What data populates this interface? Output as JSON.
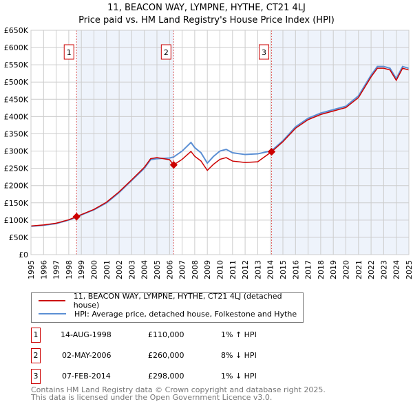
{
  "title": "11, BEACON WAY, LYMPNE, HYTHE, CT21 4LJ",
  "subtitle": "Price paid vs. HM Land Registry's House Price Index (HPI)",
  "chart_data": {
    "type": "line",
    "xlim": [
      1995,
      2025
    ],
    "ylim": [
      0,
      650000
    ],
    "y_ticks": [
      0,
      50000,
      100000,
      150000,
      200000,
      250000,
      300000,
      350000,
      400000,
      450000,
      500000,
      550000,
      600000,
      650000
    ],
    "y_tick_labels": [
      "£0",
      "£50K",
      "£100K",
      "£150K",
      "£200K",
      "£250K",
      "£300K",
      "£350K",
      "£400K",
      "£450K",
      "£500K",
      "£550K",
      "£600K",
      "£650K"
    ],
    "x_ticks": [
      1995,
      1996,
      1997,
      1998,
      1999,
      2000,
      2001,
      2002,
      2003,
      2004,
      2005,
      2006,
      2007,
      2008,
      2009,
      2010,
      2011,
      2012,
      2013,
      2014,
      2015,
      2016,
      2017,
      2018,
      2019,
      2020,
      2021,
      2022,
      2023,
      2024,
      2025
    ],
    "grid": true,
    "series": [
      {
        "name": "11, BEACON WAY, LYMPNE, HYTHE, CT21 4LJ (detached house)",
        "color": "#cc0000",
        "x": [
          1995,
          1996,
          1997,
          1998,
          1998.62,
          1999,
          2000,
          2001,
          2002,
          2003,
          2004,
          2004.5,
          2005,
          2006,
          2006.33,
          2007,
          2007.7,
          2008,
          2008.5,
          2009,
          2009.5,
          2010,
          2010.5,
          2011,
          2012,
          2013,
          2014.1,
          2015,
          2016,
          2017,
          2018,
          2019,
          2020,
          2021,
          2022,
          2022.5,
          2023,
          2023.5,
          2024,
          2024.5,
          2025
        ],
        "y": [
          83000,
          86000,
          91000,
          101000,
          110000,
          116000,
          131000,
          152000,
          182000,
          217000,
          253000,
          278000,
          281000,
          275000,
          260000,
          276000,
          299000,
          285000,
          271000,
          244000,
          262000,
          276000,
          281000,
          271000,
          267000,
          269000,
          298000,
          327000,
          366000,
          391000,
          406000,
          416000,
          426000,
          455000,
          515000,
          540000,
          540000,
          535000,
          505000,
          540000,
          535000
        ]
      },
      {
        "name": "HPI: Average price, detached house, Folkestone and Hythe",
        "color": "#5b8fd4",
        "x": [
          1995,
          1996,
          1997,
          1998,
          1998.62,
          1999,
          2000,
          2001,
          2002,
          2003,
          2004,
          2004.5,
          2005,
          2006,
          2006.33,
          2007,
          2007.7,
          2008,
          2008.5,
          2009,
          2009.5,
          2010,
          2010.5,
          2011,
          2012,
          2013,
          2014.1,
          2015,
          2016,
          2017,
          2018,
          2019,
          2020,
          2021,
          2022,
          2022.5,
          2023,
          2023.5,
          2024,
          2024.5,
          2025
        ],
        "y": [
          82000,
          85000,
          90000,
          100000,
          109000,
          115000,
          130000,
          150000,
          180000,
          215000,
          250000,
          275000,
          278000,
          280000,
          283000,
          300000,
          325000,
          310000,
          295000,
          265000,
          285000,
          300000,
          305000,
          295000,
          290000,
          292000,
          301000,
          330000,
          370000,
          395000,
          410000,
          420000,
          430000,
          460000,
          520000,
          545000,
          545000,
          540000,
          510000,
          545000,
          540000
        ]
      }
    ],
    "sales": [
      {
        "label": "1",
        "x": 1998.62,
        "y": 110000
      },
      {
        "label": "2",
        "x": 2006.33,
        "y": 260000
      },
      {
        "label": "3",
        "x": 2014.1,
        "y": 298000
      }
    ],
    "legend": "below"
  },
  "legend": {
    "items": [
      "11, BEACON WAY, LYMPNE, HYTHE, CT21 4LJ (detached house)",
      "HPI: Average price, detached house, Folkestone and Hythe"
    ]
  },
  "transactions": [
    {
      "n": "1",
      "date": "14-AUG-1998",
      "price": "£110,000",
      "hpi": "1% ↑ HPI"
    },
    {
      "n": "2",
      "date": "02-MAY-2006",
      "price": "£260,000",
      "hpi": "8% ↓ HPI"
    },
    {
      "n": "3",
      "date": "07-FEB-2014",
      "price": "£298,000",
      "hpi": "1% ↓ HPI"
    }
  ],
  "footer": {
    "line1": "Contains HM Land Registry data © Crown copyright and database right 2025.",
    "line2": "This data is licensed under the Open Government Licence v3.0."
  }
}
